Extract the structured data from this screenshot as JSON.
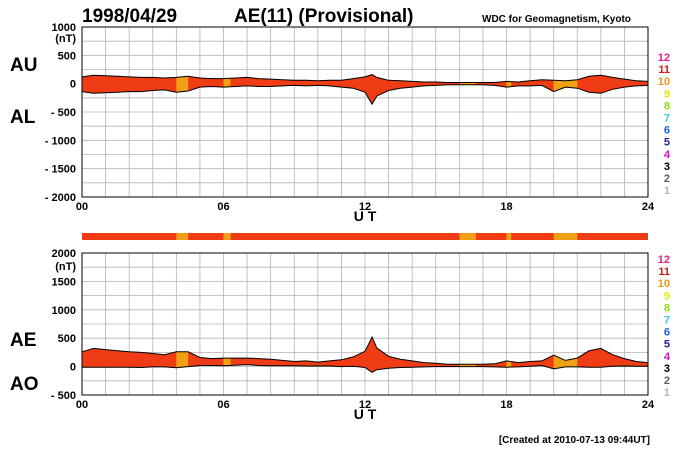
{
  "header": {
    "date": "1998/04/29",
    "title": "AE(11) (Provisional)",
    "source": "WDC for Geomagnetism, Kyoto"
  },
  "footer": {
    "created": "[Created at 2010-07-13 09:44UT]"
  },
  "colors": {
    "main": "#f03c14",
    "provisional": "#f0a014",
    "line": "#000000",
    "grid": "#b4b4b4"
  },
  "legend": [
    {
      "label": "12",
      "color": "#e0208c"
    },
    {
      "label": "11",
      "color": "#e01414"
    },
    {
      "label": "10",
      "color": "#f09614"
    },
    {
      "label": "9",
      "color": "#e6e614"
    },
    {
      "label": "8",
      "color": "#8cdc14"
    },
    {
      "label": "7",
      "color": "#3cc8f0"
    },
    {
      "label": "6",
      "color": "#1464e6"
    },
    {
      "label": "5",
      "color": "#1e1ea0"
    },
    {
      "label": "4",
      "color": "#c814c8"
    },
    {
      "label": "3",
      "color": "#000000"
    },
    {
      "label": "2",
      "color": "#606060"
    },
    {
      "label": "1",
      "color": "#b4b4b4"
    }
  ],
  "chart_data": [
    {
      "type": "area",
      "side_labels": [
        "AU",
        "AL"
      ],
      "xlabel": "U T",
      "ylabel_unit": "(nT)",
      "xlim": [
        0,
        24
      ],
      "ylim": [
        -2000,
        1000
      ],
      "x_ticks": [
        0,
        6,
        12,
        18,
        24
      ],
      "x_tick_labels": [
        "00",
        "06",
        "12",
        "18",
        "24"
      ],
      "y_ticks": [
        1000,
        500,
        0,
        -500,
        -1000,
        -1500,
        -2000
      ],
      "y_tick_labels": [
        "1000",
        "500",
        "0",
        "- 500",
        "- 1000",
        "- 1500",
        "- 2000"
      ],
      "series": [
        {
          "name": "AU",
          "x": [
            0,
            0.5,
            1,
            1.5,
            2,
            2.5,
            3,
            3.5,
            4,
            4.5,
            5,
            5.5,
            6,
            6.5,
            7,
            7.5,
            8,
            8.5,
            9,
            9.5,
            10,
            10.5,
            11,
            11.5,
            12,
            12.3,
            12.5,
            13,
            13.5,
            14,
            14.5,
            15,
            15.5,
            16,
            16.5,
            17,
            17.5,
            18,
            18.5,
            19,
            19.5,
            20,
            20.5,
            21,
            21.5,
            22,
            22.5,
            23,
            23.5,
            24
          ],
          "values": [
            120,
            150,
            140,
            130,
            120,
            110,
            110,
            100,
            110,
            130,
            100,
            90,
            90,
            100,
            110,
            90,
            80,
            70,
            60,
            60,
            50,
            60,
            60,
            90,
            120,
            160,
            110,
            60,
            50,
            40,
            30,
            30,
            20,
            20,
            20,
            20,
            20,
            40,
            30,
            50,
            70,
            60,
            50,
            70,
            130,
            150,
            110,
            80,
            50,
            40
          ]
        },
        {
          "name": "AL",
          "x": [
            0,
            0.5,
            1,
            1.5,
            2,
            2.5,
            3,
            3.5,
            4,
            4.5,
            5,
            5.5,
            6,
            6.5,
            7,
            7.5,
            8,
            8.5,
            9,
            9.5,
            10,
            10.5,
            11,
            11.5,
            12,
            12.3,
            12.5,
            13,
            13.5,
            14,
            14.5,
            15,
            15.5,
            16,
            16.5,
            17,
            17.5,
            18,
            18.5,
            19,
            19.5,
            20,
            20.5,
            21,
            21.5,
            22,
            22.5,
            23,
            23.5,
            24
          ],
          "values": [
            -140,
            -170,
            -160,
            -150,
            -140,
            -140,
            -120,
            -110,
            -150,
            -130,
            -60,
            -50,
            -60,
            -50,
            -40,
            -50,
            -50,
            -40,
            -30,
            -40,
            -30,
            -40,
            -60,
            -80,
            -150,
            -360,
            -220,
            -120,
            -80,
            -60,
            -40,
            -30,
            -20,
            -20,
            -20,
            -20,
            -30,
            -60,
            -40,
            -40,
            -30,
            -140,
            -60,
            -80,
            -150,
            -170,
            -100,
            -60,
            -40,
            -30
          ]
        }
      ]
    },
    {
      "type": "area",
      "side_labels": [
        "AE",
        "AO"
      ],
      "xlabel": "U T",
      "ylabel_unit": "(nT)",
      "xlim": [
        0,
        24
      ],
      "ylim": [
        -500,
        2000
      ],
      "x_ticks": [
        0,
        6,
        12,
        18,
        24
      ],
      "x_tick_labels": [
        "00",
        "06",
        "12",
        "18",
        "24"
      ],
      "y_ticks": [
        2000,
        1500,
        1000,
        500,
        0,
        -500
      ],
      "y_tick_labels": [
        "2000",
        "1500",
        "1000",
        "500",
        "0",
        "- 500"
      ],
      "series": [
        {
          "name": "AE",
          "x": [
            0,
            0.5,
            1,
            1.5,
            2,
            2.5,
            3,
            3.5,
            4,
            4.5,
            5,
            5.5,
            6,
            6.5,
            7,
            7.5,
            8,
            8.5,
            9,
            9.5,
            10,
            10.5,
            11,
            11.5,
            12,
            12.3,
            12.5,
            13,
            13.5,
            14,
            14.5,
            15,
            15.5,
            16,
            16.5,
            17,
            17.5,
            18,
            18.5,
            19,
            19.5,
            20,
            20.5,
            21,
            21.5,
            22,
            22.5,
            23,
            23.5,
            24
          ],
          "values": [
            260,
            320,
            300,
            280,
            260,
            250,
            230,
            210,
            260,
            260,
            160,
            140,
            150,
            150,
            150,
            140,
            130,
            110,
            90,
            100,
            80,
            100,
            120,
            170,
            270,
            520,
            330,
            180,
            130,
            100,
            70,
            60,
            40,
            40,
            40,
            40,
            50,
            100,
            70,
            90,
            100,
            200,
            110,
            150,
            280,
            320,
            210,
            140,
            90,
            70
          ]
        },
        {
          "name": "AO",
          "x": [
            0,
            0.5,
            1,
            1.5,
            2,
            2.5,
            3,
            3.5,
            4,
            4.5,
            5,
            5.5,
            6,
            6.5,
            7,
            7.5,
            8,
            8.5,
            9,
            9.5,
            10,
            10.5,
            11,
            11.5,
            12,
            12.3,
            12.5,
            13,
            13.5,
            14,
            14.5,
            15,
            15.5,
            16,
            16.5,
            17,
            17.5,
            18,
            18.5,
            19,
            19.5,
            20,
            20.5,
            21,
            21.5,
            22,
            22.5,
            23,
            23.5,
            24
          ],
          "values": [
            -10,
            -10,
            -10,
            -10,
            -10,
            -15,
            -5,
            -5,
            -20,
            0,
            20,
            20,
            15,
            25,
            35,
            20,
            15,
            15,
            15,
            10,
            10,
            10,
            0,
            5,
            -15,
            -100,
            -55,
            -30,
            -15,
            -10,
            -5,
            0,
            0,
            0,
            0,
            0,
            -5,
            -10,
            -5,
            5,
            20,
            -40,
            -5,
            -5,
            -10,
            -10,
            5,
            10,
            5,
            5
          ]
        }
      ]
    }
  ],
  "station_strip": {
    "provisional_ranges": [
      [
        4.0,
        4.5
      ],
      [
        6.0,
        6.3
      ],
      [
        16.0,
        16.7
      ],
      [
        18.0,
        18.2
      ],
      [
        20.0,
        21.0
      ]
    ]
  }
}
